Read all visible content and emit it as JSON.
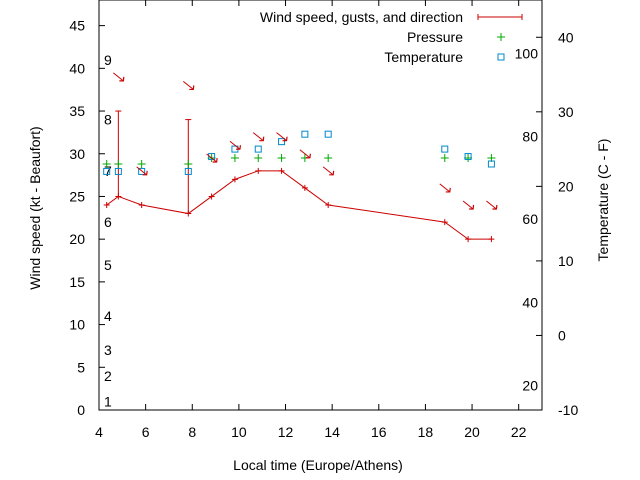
{
  "chart_data": {
    "type": "line",
    "xlabel": "Local time (Europe/Athens)",
    "ylabel": "Wind speed (kt - Beaufort)",
    "y2label": "Temperature (C - F)",
    "xlim": [
      4,
      23
    ],
    "ylim": [
      0,
      48
    ],
    "y2lim": [
      -10,
      45
    ],
    "x_ticks": [
      "4",
      "6",
      "8",
      "10",
      "12",
      "14",
      "16",
      "18",
      "20",
      "22"
    ],
    "y_ticks": [
      "0",
      "5",
      "10",
      "15",
      "20",
      "25",
      "30",
      "35",
      "40",
      "45"
    ],
    "y2_ticks": [
      "-10",
      "0",
      "10",
      "20",
      "30",
      "40"
    ],
    "fahrenheit_marks": [
      {
        "label": "20",
        "celsius": -6.7
      },
      {
        "label": "40",
        "celsius": 4.4
      },
      {
        "label": "60",
        "celsius": 15.6
      },
      {
        "label": "80",
        "celsius": 26.7
      },
      {
        "label": "100",
        "celsius": 37.8
      }
    ],
    "beaufort_marks": [
      {
        "label": "1",
        "kt": 1
      },
      {
        "label": "2",
        "kt": 4
      },
      {
        "label": "3",
        "kt": 7
      },
      {
        "label": "4",
        "kt": 11
      },
      {
        "label": "5",
        "kt": 17
      },
      {
        "label": "6",
        "kt": 22
      },
      {
        "label": "7",
        "kt": 28
      },
      {
        "label": "8",
        "kt": 34
      },
      {
        "label": "9",
        "kt": 41
      }
    ],
    "legend_position": "top-right",
    "series": [
      {
        "name": "Wind speed, gusts, and direction",
        "color": "#cc0000",
        "x": [
          4.33,
          4.83,
          5.83,
          7.83,
          8.83,
          9.83,
          10.83,
          11.83,
          12.83,
          13.83,
          18.83,
          19.83,
          20.83
        ],
        "values": [
          24,
          25,
          24,
          23,
          25,
          27,
          28,
          28,
          26,
          24,
          22,
          20,
          20
        ],
        "gusts": [
          null,
          35,
          null,
          34,
          null,
          null,
          null,
          null,
          null,
          null,
          null,
          null,
          null
        ],
        "direction_arrows_x": [
          4.83,
          5.83,
          7.83,
          8.83,
          9.83,
          10.83,
          11.83,
          12.83,
          13.83,
          18.83,
          19.83,
          20.83
        ],
        "direction_arrows_y": [
          39,
          28,
          38,
          29.5,
          31,
          32,
          32,
          30,
          28,
          26,
          24,
          24
        ]
      },
      {
        "name": "Pressure",
        "color": "#00aa00",
        "x": [
          4.33,
          4.83,
          5.83,
          7.83,
          8.83,
          9.83,
          10.83,
          11.83,
          12.83,
          13.83,
          18.83,
          19.83,
          20.83
        ],
        "values": [
          28.8,
          28.8,
          28.8,
          28.8,
          29.5,
          29.5,
          29.5,
          29.5,
          29.5,
          29.5,
          29.5,
          29.5,
          29.5
        ]
      },
      {
        "name": "Temperature",
        "color": "#0088cc",
        "axis": "right",
        "x": [
          4.33,
          4.83,
          5.83,
          7.83,
          8.83,
          9.83,
          10.83,
          11.83,
          12.83,
          13.83,
          18.83,
          19.83,
          20.83
        ],
        "values": [
          22,
          22,
          22,
          22,
          24,
          25,
          25,
          26,
          27,
          27,
          25,
          24,
          23
        ]
      }
    ]
  }
}
